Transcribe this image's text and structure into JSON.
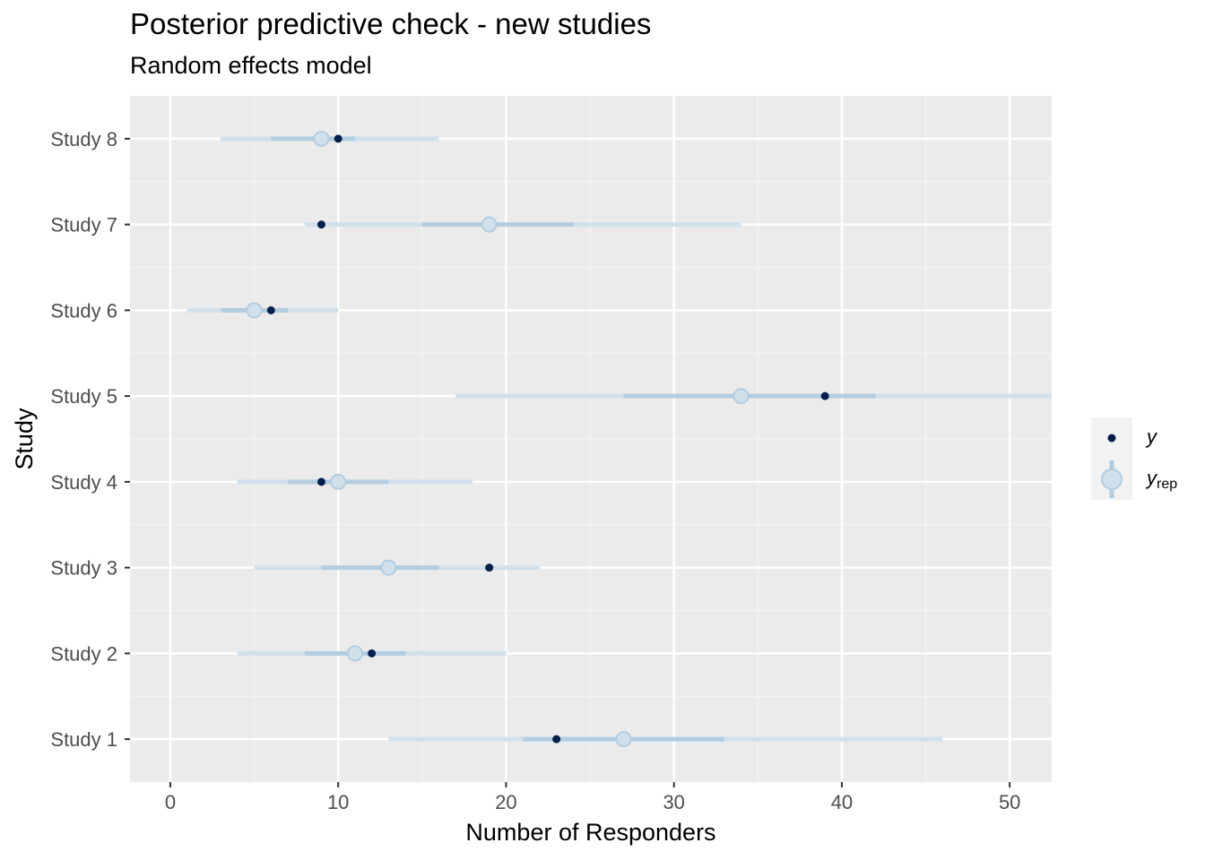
{
  "title": "Posterior predictive check - new studies",
  "subtitle": "Random effects model",
  "colors": {
    "panel_bg": "#ebebeb",
    "grid_major": "#ffffff",
    "grid_minor": "#f4f4f4",
    "y_point": "#011f4b",
    "yrep_point_fill": "#d1e1ec",
    "yrep_point_stroke": "#b3cde0",
    "outer_interval": "#d1e1ec",
    "inner_interval": "#b3cde0",
    "legend_key_bg": "#f2f2f2"
  },
  "chart_data": {
    "type": "interval",
    "title": "Posterior predictive check - new studies",
    "subtitle": "Random effects model",
    "xlabel": "Number of Responders",
    "ylabel": "Study",
    "xlim": [
      -2.4,
      52.5
    ],
    "x_ticks": [
      0,
      10,
      20,
      30,
      40,
      50
    ],
    "grid": true,
    "legend_position": "right",
    "legend": [
      {
        "key": "y",
        "label": "y",
        "sub": ""
      },
      {
        "key": "yrep",
        "label": "y",
        "sub": "rep"
      }
    ],
    "studies": [
      {
        "name": "Study 1",
        "y": 23,
        "yrep_median": 27,
        "inner": [
          21,
          33
        ],
        "outer": [
          13,
          46
        ]
      },
      {
        "name": "Study 2",
        "y": 12,
        "yrep_median": 11,
        "inner": [
          8,
          14
        ],
        "outer": [
          4,
          20
        ]
      },
      {
        "name": "Study 3",
        "y": 19,
        "yrep_median": 13,
        "inner": [
          9,
          16
        ],
        "outer": [
          5,
          22
        ]
      },
      {
        "name": "Study 4",
        "y": 9,
        "yrep_median": 10,
        "inner": [
          7,
          13
        ],
        "outer": [
          4,
          18
        ]
      },
      {
        "name": "Study 5",
        "y": 39,
        "yrep_median": 34,
        "inner": [
          27,
          42
        ],
        "outer": [
          17,
          53
        ]
      },
      {
        "name": "Study 6",
        "y": 6,
        "yrep_median": 5,
        "inner": [
          3,
          7
        ],
        "outer": [
          1,
          10
        ]
      },
      {
        "name": "Study 7",
        "y": 9,
        "yrep_median": 19,
        "inner": [
          15,
          24
        ],
        "outer": [
          8,
          34
        ]
      },
      {
        "name": "Study 8",
        "y": 10,
        "yrep_median": 9,
        "inner": [
          6,
          11
        ],
        "outer": [
          3,
          16
        ]
      }
    ]
  }
}
